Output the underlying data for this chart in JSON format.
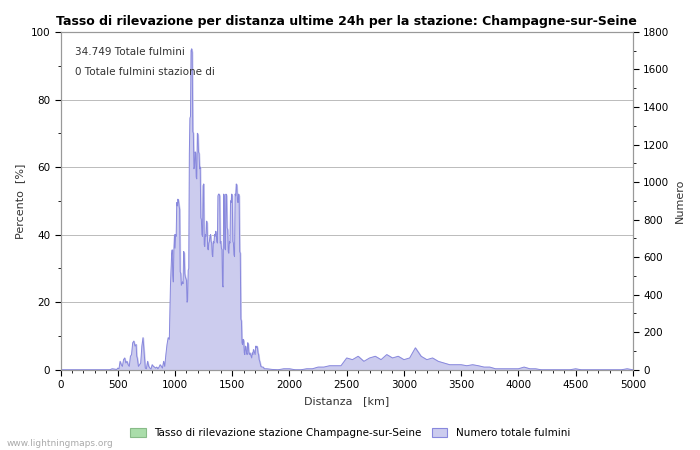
{
  "title": "Tasso di rilevazione per distanza ultime 24h per la stazione: Champagne-sur-Seine",
  "xlabel": "Distanza   [km]",
  "ylabel_left": "Percento  [%]",
  "ylabel_right": "Numero",
  "annotation_line1": "34.749 Totale fulmini",
  "annotation_line2": "0 Totale fulmini stazione di",
  "legend_label1": "Tasso di rilevazione stazione Champagne-sur-Seine",
  "legend_label2": "Numero totale fulmini",
  "watermark": "www.lightningmaps.org",
  "xlim": [
    0,
    5000
  ],
  "ylim_left": [
    0,
    100
  ],
  "ylim_right": [
    0,
    1800
  ],
  "xticks": [
    0,
    500,
    1000,
    1500,
    2000,
    2500,
    3000,
    3500,
    4000,
    4500,
    5000
  ],
  "yticks_left": [
    0,
    20,
    40,
    60,
    80,
    100
  ],
  "yticks_right": [
    0,
    200,
    400,
    600,
    800,
    1000,
    1200,
    1400,
    1600,
    1800
  ],
  "line_color": "#8888dd",
  "fill_color": "#ccccee",
  "green_fill_color": "#aaddaa",
  "bg_color": "#ffffff",
  "grid_color": "#bbbbbb",
  "title_color": "#000000",
  "axis_color": "#333333",
  "watermark_color": "#aaaaaa",
  "detection_rate_data": [
    [
      0,
      0
    ],
    [
      50,
      0
    ],
    [
      100,
      0
    ],
    [
      150,
      0
    ],
    [
      200,
      0
    ],
    [
      250,
      0
    ],
    [
      300,
      0
    ],
    [
      350,
      0
    ],
    [
      400,
      0
    ],
    [
      430,
      0
    ],
    [
      450,
      0.3
    ],
    [
      470,
      0.2
    ],
    [
      490,
      0.1
    ],
    [
      500,
      0.5
    ],
    [
      510,
      0.3
    ],
    [
      520,
      2.5
    ],
    [
      530,
      1.5
    ],
    [
      540,
      1.0
    ],
    [
      550,
      3.0
    ],
    [
      560,
      3.5
    ],
    [
      570,
      2.0
    ],
    [
      580,
      2.5
    ],
    [
      590,
      1.5
    ],
    [
      600,
      1.0
    ],
    [
      610,
      4.0
    ],
    [
      620,
      4.5
    ],
    [
      630,
      8.0
    ],
    [
      640,
      8.5
    ],
    [
      650,
      7.0
    ],
    [
      660,
      7.5
    ],
    [
      665,
      4.0
    ],
    [
      670,
      3.5
    ],
    [
      680,
      1.0
    ],
    [
      690,
      1.5
    ],
    [
      700,
      2.0
    ],
    [
      710,
      7.0
    ],
    [
      720,
      9.5
    ],
    [
      730,
      5.0
    ],
    [
      740,
      0.5
    ],
    [
      750,
      0.3
    ],
    [
      760,
      2.5
    ],
    [
      770,
      1.0
    ],
    [
      780,
      0.5
    ],
    [
      790,
      0.2
    ],
    [
      800,
      1.5
    ],
    [
      810,
      1.0
    ],
    [
      820,
      0.8
    ],
    [
      830,
      0.5
    ],
    [
      840,
      0.8
    ],
    [
      850,
      0.3
    ],
    [
      860,
      0.8
    ],
    [
      870,
      1.5
    ],
    [
      880,
      1.0
    ],
    [
      890,
      0.5
    ],
    [
      900,
      2.5
    ],
    [
      910,
      1.0
    ],
    [
      920,
      4.5
    ],
    [
      930,
      7.5
    ],
    [
      940,
      9.5
    ],
    [
      950,
      9.0
    ],
    [
      960,
      25.0
    ],
    [
      970,
      34.0
    ],
    [
      975,
      35.5
    ],
    [
      980,
      28.0
    ],
    [
      985,
      26.0
    ],
    [
      990,
      35.5
    ],
    [
      995,
      40.0
    ],
    [
      1000,
      36.0
    ],
    [
      1005,
      40.0
    ],
    [
      1010,
      39.5
    ],
    [
      1015,
      49.5
    ],
    [
      1020,
      48.5
    ],
    [
      1025,
      50.5
    ],
    [
      1030,
      50.0
    ],
    [
      1035,
      48.5
    ],
    [
      1040,
      47.5
    ],
    [
      1045,
      29.0
    ],
    [
      1050,
      28.5
    ],
    [
      1055,
      25.0
    ],
    [
      1060,
      25.5
    ],
    [
      1065,
      26.0
    ],
    [
      1070,
      25.5
    ],
    [
      1075,
      35.0
    ],
    [
      1080,
      34.5
    ],
    [
      1085,
      28.5
    ],
    [
      1090,
      27.5
    ],
    [
      1095,
      27.0
    ],
    [
      1100,
      26.5
    ],
    [
      1105,
      20.0
    ],
    [
      1110,
      20.5
    ],
    [
      1115,
      29.5
    ],
    [
      1120,
      30.0
    ],
    [
      1125,
      64.0
    ],
    [
      1130,
      74.5
    ],
    [
      1135,
      75.0
    ],
    [
      1140,
      94.5
    ],
    [
      1145,
      95.0
    ],
    [
      1150,
      94.0
    ],
    [
      1155,
      70.5
    ],
    [
      1160,
      70.0
    ],
    [
      1165,
      59.5
    ],
    [
      1170,
      60.0
    ],
    [
      1175,
      64.5
    ],
    [
      1180,
      64.0
    ],
    [
      1185,
      57.0
    ],
    [
      1190,
      56.5
    ],
    [
      1195,
      70.0
    ],
    [
      1200,
      69.5
    ],
    [
      1205,
      64.5
    ],
    [
      1210,
      64.0
    ],
    [
      1215,
      59.5
    ],
    [
      1220,
      60.0
    ],
    [
      1225,
      45.0
    ],
    [
      1230,
      44.5
    ],
    [
      1235,
      40.0
    ],
    [
      1240,
      39.5
    ],
    [
      1245,
      54.5
    ],
    [
      1250,
      55.0
    ],
    [
      1255,
      37.0
    ],
    [
      1260,
      36.5
    ],
    [
      1265,
      40.0
    ],
    [
      1270,
      39.5
    ],
    [
      1275,
      44.0
    ],
    [
      1280,
      43.5
    ],
    [
      1285,
      36.0
    ],
    [
      1290,
      35.5
    ],
    [
      1295,
      37.5
    ],
    [
      1300,
      38.0
    ],
    [
      1305,
      39.5
    ],
    [
      1310,
      40.0
    ],
    [
      1315,
      38.0
    ],
    [
      1320,
      37.5
    ],
    [
      1325,
      34.0
    ],
    [
      1330,
      33.5
    ],
    [
      1335,
      38.0
    ],
    [
      1340,
      37.5
    ],
    [
      1345,
      40.0
    ],
    [
      1350,
      39.5
    ],
    [
      1355,
      41.0
    ],
    [
      1360,
      40.5
    ],
    [
      1365,
      38.0
    ],
    [
      1370,
      37.5
    ],
    [
      1375,
      51.5
    ],
    [
      1380,
      52.0
    ],
    [
      1385,
      52.0
    ],
    [
      1390,
      51.5
    ],
    [
      1395,
      37.5
    ],
    [
      1400,
      38.0
    ],
    [
      1405,
      36.0
    ],
    [
      1410,
      35.5
    ],
    [
      1415,
      25.0
    ],
    [
      1420,
      24.5
    ],
    [
      1425,
      52.0
    ],
    [
      1430,
      51.5
    ],
    [
      1435,
      36.0
    ],
    [
      1440,
      35.5
    ],
    [
      1445,
      52.0
    ],
    [
      1450,
      51.5
    ],
    [
      1455,
      42.0
    ],
    [
      1460,
      41.5
    ],
    [
      1465,
      35.0
    ],
    [
      1470,
      34.5
    ],
    [
      1475,
      38.0
    ],
    [
      1480,
      37.5
    ],
    [
      1485,
      50.0
    ],
    [
      1490,
      49.5
    ],
    [
      1495,
      52.0
    ],
    [
      1500,
      51.5
    ],
    [
      1505,
      38.0
    ],
    [
      1510,
      37.5
    ],
    [
      1515,
      34.0
    ],
    [
      1520,
      33.5
    ],
    [
      1525,
      52.0
    ],
    [
      1530,
      51.5
    ],
    [
      1535,
      55.0
    ],
    [
      1540,
      54.5
    ],
    [
      1545,
      50.0
    ],
    [
      1550,
      49.5
    ],
    [
      1555,
      52.0
    ],
    [
      1560,
      51.5
    ],
    [
      1565,
      35.0
    ],
    [
      1570,
      34.5
    ],
    [
      1575,
      15.0
    ],
    [
      1580,
      14.5
    ],
    [
      1585,
      8.0
    ],
    [
      1590,
      7.5
    ],
    [
      1595,
      9.0
    ],
    [
      1600,
      8.5
    ],
    [
      1605,
      5.0
    ],
    [
      1610,
      4.5
    ],
    [
      1615,
      7.0
    ],
    [
      1620,
      6.5
    ],
    [
      1625,
      5.0
    ],
    [
      1630,
      4.5
    ],
    [
      1635,
      8.0
    ],
    [
      1640,
      7.5
    ],
    [
      1645,
      5.0
    ],
    [
      1650,
      4.5
    ],
    [
      1655,
      5.0
    ],
    [
      1660,
      4.5
    ],
    [
      1665,
      4.0
    ],
    [
      1670,
      3.5
    ],
    [
      1675,
      5.0
    ],
    [
      1680,
      4.5
    ],
    [
      1685,
      6.0
    ],
    [
      1690,
      5.5
    ],
    [
      1695,
      5.0
    ],
    [
      1700,
      4.5
    ],
    [
      1705,
      7.0
    ],
    [
      1710,
      6.5
    ],
    [
      1715,
      7.0
    ],
    [
      1720,
      6.5
    ],
    [
      1725,
      5.0
    ],
    [
      1730,
      4.5
    ],
    [
      1735,
      3.0
    ],
    [
      1740,
      2.5
    ],
    [
      1750,
      1.0
    ],
    [
      1760,
      0.8
    ],
    [
      1770,
      0.8
    ],
    [
      1780,
      0.3
    ],
    [
      1790,
      0.3
    ],
    [
      1800,
      0.3
    ],
    [
      1850,
      0.1
    ],
    [
      1900,
      0.0
    ],
    [
      1950,
      0.3
    ],
    [
      2000,
      0.3
    ],
    [
      2050,
      0.0
    ],
    [
      2100,
      0.0
    ],
    [
      2150,
      0.3
    ],
    [
      2200,
      0.3
    ],
    [
      2250,
      0.8
    ],
    [
      2300,
      0.8
    ],
    [
      2350,
      1.2
    ],
    [
      2400,
      1.2
    ],
    [
      2450,
      1.2
    ],
    [
      2500,
      3.5
    ],
    [
      2550,
      3.0
    ],
    [
      2600,
      4.0
    ],
    [
      2650,
      2.5
    ],
    [
      2700,
      3.5
    ],
    [
      2750,
      4.0
    ],
    [
      2800,
      3.0
    ],
    [
      2850,
      4.5
    ],
    [
      2900,
      3.5
    ],
    [
      2950,
      4.0
    ],
    [
      3000,
      3.0
    ],
    [
      3050,
      3.5
    ],
    [
      3100,
      6.5
    ],
    [
      3150,
      4.0
    ],
    [
      3200,
      3.0
    ],
    [
      3250,
      3.5
    ],
    [
      3300,
      2.5
    ],
    [
      3350,
      2.0
    ],
    [
      3400,
      1.5
    ],
    [
      3450,
      1.5
    ],
    [
      3500,
      1.5
    ],
    [
      3550,
      1.2
    ],
    [
      3600,
      1.5
    ],
    [
      3650,
      1.2
    ],
    [
      3700,
      0.8
    ],
    [
      3750,
      0.8
    ],
    [
      3800,
      0.3
    ],
    [
      3850,
      0.3
    ],
    [
      3900,
      0.3
    ],
    [
      3950,
      0.3
    ],
    [
      4000,
      0.3
    ],
    [
      4050,
      0.8
    ],
    [
      4100,
      0.3
    ],
    [
      4150,
      0.3
    ],
    [
      4200,
      0.0
    ],
    [
      4250,
      0.0
    ],
    [
      4300,
      0.0
    ],
    [
      4350,
      0.0
    ],
    [
      4400,
      0.0
    ],
    [
      4450,
      0.0
    ],
    [
      4500,
      0.3
    ],
    [
      4550,
      0.0
    ],
    [
      4600,
      0.0
    ],
    [
      4650,
      0.0
    ],
    [
      4700,
      0.0
    ],
    [
      4750,
      0.0
    ],
    [
      4800,
      0.0
    ],
    [
      4850,
      0.0
    ],
    [
      4900,
      0.0
    ],
    [
      4950,
      0.3
    ],
    [
      5000,
      0.0
    ]
  ]
}
